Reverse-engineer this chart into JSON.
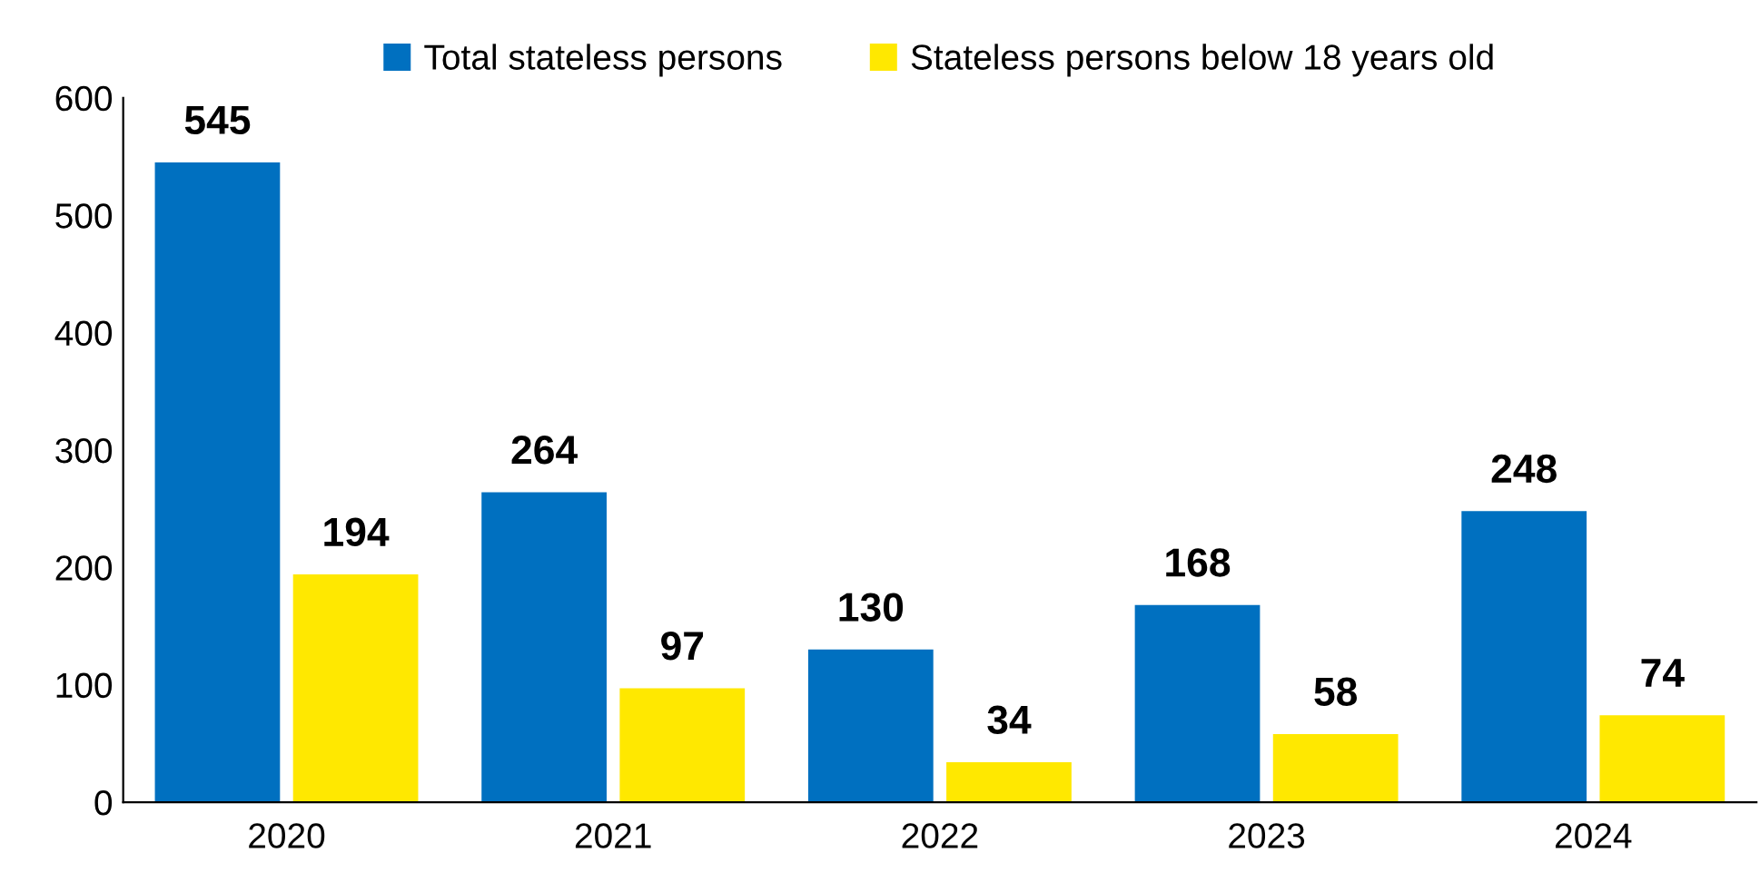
{
  "chart_data": {
    "type": "bar",
    "categories": [
      "2020",
      "2021",
      "2022",
      "2023",
      "2024"
    ],
    "series": [
      {
        "name": "Total stateless persons",
        "color": "#0070c0",
        "values": [
          545,
          264,
          130,
          168,
          248
        ]
      },
      {
        "name": "Stateless persons below 18 years old",
        "color": "#ffe800",
        "values": [
          194,
          97,
          34,
          58,
          74
        ]
      }
    ],
    "ylim": [
      0,
      600
    ],
    "yticks": [
      0,
      100,
      200,
      300,
      400,
      500,
      600
    ],
    "grid": false,
    "legend": "top",
    "data_labels": true
  }
}
